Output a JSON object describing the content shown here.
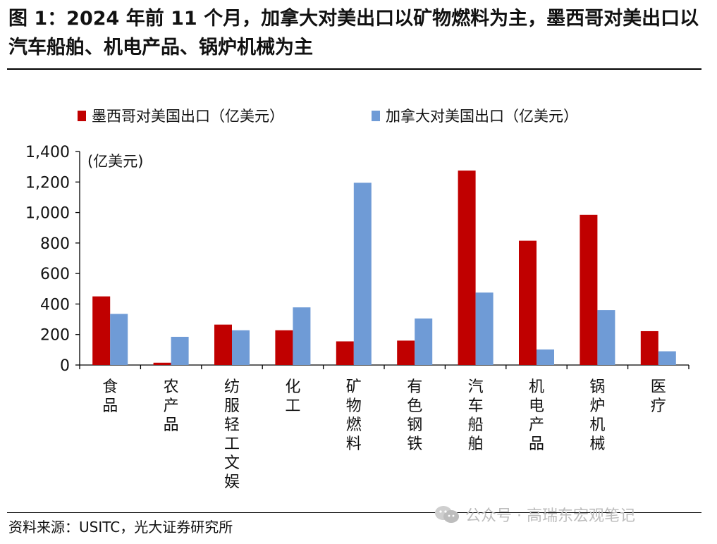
{
  "figure": {
    "title": "图 1：2024 年前 11 个月，加拿大对美出口以矿物燃料为主，墨西哥对美出口以汽车船舶、机电产品、锅炉机械为主",
    "source": "资料来源：USITC，光大证券研究所",
    "watermark": "公众号 · 高瑞东宏观笔记"
  },
  "colors": {
    "mexico": "#C00000",
    "canada": "#6F9BD6",
    "axis": "#000000"
  },
  "chart_data": {
    "type": "bar",
    "ylabel": "(亿美元)",
    "ylim": [
      0,
      1400
    ],
    "yticks": [
      0,
      200,
      400,
      600,
      800,
      1000,
      1200,
      1400
    ],
    "ytick_labels": [
      "0",
      "200",
      "400",
      "600",
      "800",
      "1,000",
      "1,200",
      "1,400"
    ],
    "legend_position": "top",
    "grid": false,
    "categories": [
      "食品",
      "农产品",
      "纺服轻工文娱",
      "化工",
      "矿物燃料",
      "有色钢铁",
      "汽车船舶",
      "机电产品",
      "锅炉机械",
      "医疗"
    ],
    "series": [
      {
        "name": "墨西哥对美国出口（亿美元）",
        "color": "#C00000",
        "values": [
          450,
          15,
          265,
          228,
          155,
          160,
          1275,
          815,
          985,
          222
        ]
      },
      {
        "name": "加拿大对美国出口（亿美元）",
        "color": "#6F9BD6",
        "values": [
          335,
          185,
          228,
          378,
          1195,
          305,
          475,
          102,
          360,
          90
        ]
      }
    ]
  }
}
